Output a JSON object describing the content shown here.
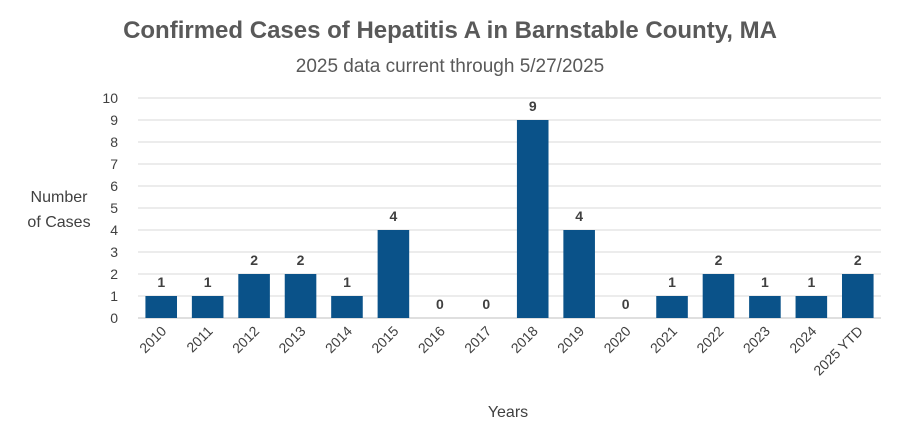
{
  "chart_data": {
    "type": "bar",
    "title": "Confirmed Cases of Hepatitis A in Barnstable County, MA",
    "subtitle": "2025 data current through 5/27/2025",
    "xlabel": "Years",
    "ylabel_lines": [
      "Number",
      "of Cases"
    ],
    "categories": [
      "2010",
      "2011",
      "2012",
      "2013",
      "2014",
      "2015",
      "2016",
      "2017",
      "2018",
      "2019",
      "2020",
      "2021",
      "2022",
      "2023",
      "2024",
      "2025 YTD"
    ],
    "values": [
      1,
      1,
      2,
      2,
      1,
      4,
      0,
      0,
      9,
      4,
      0,
      1,
      2,
      1,
      1,
      2
    ],
    "ylim": [
      0,
      10
    ],
    "yticks": [
      0,
      1,
      2,
      3,
      4,
      5,
      6,
      7,
      8,
      9,
      10
    ],
    "grid": true,
    "legend": "none",
    "bar_color": "#0a5289",
    "data_labels": true
  }
}
